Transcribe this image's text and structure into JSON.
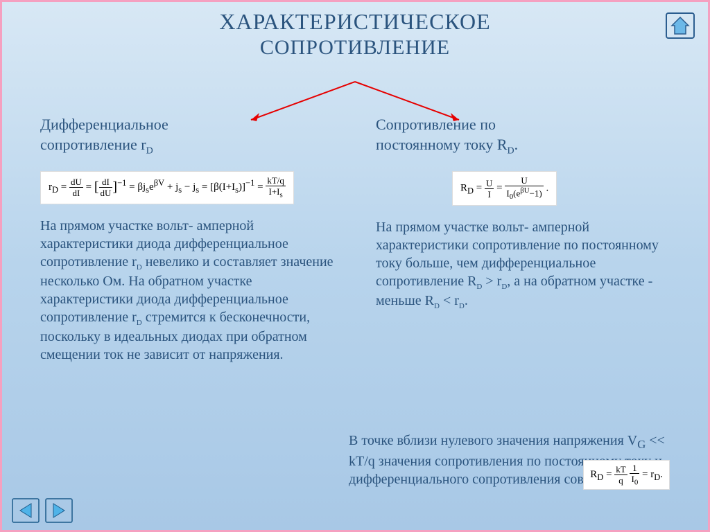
{
  "title": {
    "line1": "ХАРАКТЕРИСТИЧЕСКОЕ",
    "line2": "СОПРОТИВЛЕНИЕ"
  },
  "colors": {
    "text": "#2b547e",
    "border": "#f5a0c0",
    "arrow": "#e60000",
    "nav_fill": "#4fb3e8",
    "nav_stroke": "#1a5a8a",
    "home_fill": "#6bb8e8",
    "home_stroke": "#2b5d8f"
  },
  "left": {
    "subtitle_l1": "Дифференциальное",
    "subtitle_l2": "сопротивление r",
    "subtitle_sub": "D",
    "formula": "r<sub>D</sub> = <span class='frac'><span class='num'>dU</span><span class='den'>dI</span></span> = <span class='brak'>[</span><span class='frac'><span class='num'>dI</span><span class='den'>dU</span></span><span class='brak'>]</span><sup>−1</sup> = βj<sub>s</sub>e<sup>βV</sup> + j<sub>s</sub> − j<sub>s</sub> = [β(I+I<sub>s</sub>)]<sup>−1</sup> = <span class='frac'><span class='num'>kT/q</span><span class='den'>I+I<sub>s</sub></span></span>",
    "body": "На прямом участке вольт- амперной характеристики диода дифференциальное сопротивление r<sub>D</sub> невелико и составляет значение несколько Ом. На обратном участке характеристики диода дифференциальное сопротивление r<sub>D</sub> стремится к бесконечности, поскольку в идеальных диодах при обратном смещении ток не зависит от напряжения."
  },
  "right": {
    "subtitle_l1": "Сопротивление по",
    "subtitle_l2": "постоянному току R",
    "subtitle_sub": "D",
    "subtitle_dot": ".",
    "formula": "R<sub>D</sub> = <span class='frac'><span class='num'>U</span><span class='den'>I</span></span> = <span class='frac'><span class='num'>U</span><span class='den'>I<sub>0</sub>(e<sup>βU</sup>−1)</span></span> .",
    "body": "На прямом участке вольт- амперной характеристики сопротивление по постоянному току больше, чем дифференциальное сопротивление R<sub>D</sub> &gt; r<sub>D</sub>, а на обратном участке - меньше R<sub>D</sub> &lt; r<sub>D</sub>."
  },
  "footer": {
    "text": "В точке вблизи нулевого значения напряжения V<sub>G</sub> &lt;&lt; kT/q значения сопротивления по постоянному току и дифференциального сопротивления совпадают.",
    "formula": "R<sub>D</sub> = <span class='frac'><span class='num'>kT</span><span class='den'>q</span></span> <span class='frac'><span class='num'>1</span><span class='den'>I<sub>0</sub></span></span> = r<sub>D</sub>."
  }
}
